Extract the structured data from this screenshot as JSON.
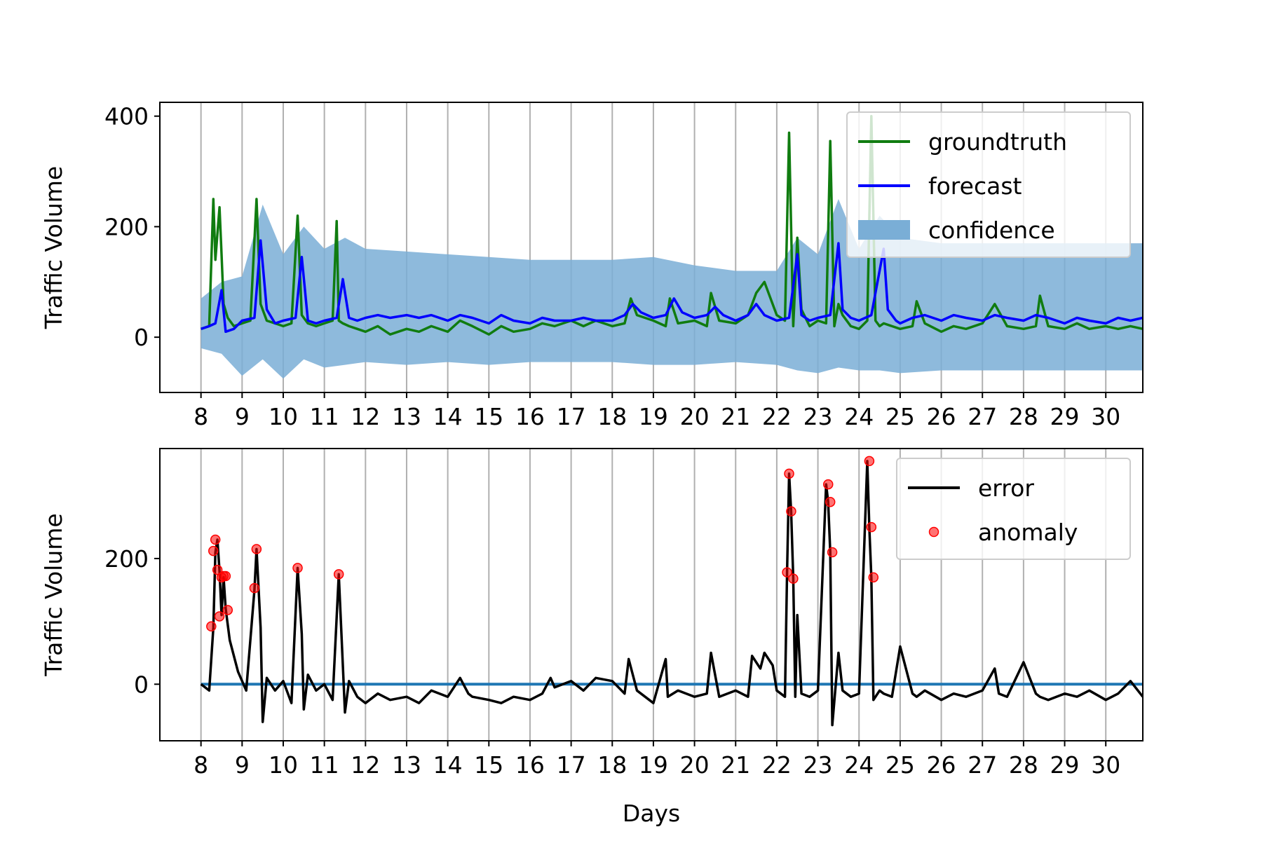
{
  "chart_data": [
    {
      "type": "line",
      "xlabel": "",
      "ylabel": "Traffic Volume",
      "xlim": [
        7,
        30.9
      ],
      "ylim": [
        -100,
        425
      ],
      "yticks": [
        0,
        200,
        400
      ],
      "xticks": [
        8,
        9,
        10,
        11,
        12,
        13,
        14,
        15,
        16,
        17,
        18,
        19,
        20,
        21,
        22,
        23,
        24,
        25,
        26,
        27,
        28,
        29,
        30
      ],
      "grid": "vertical",
      "legend_position": "top-right",
      "colors": {
        "groundtruth": "#107c10",
        "forecast": "#0000ff",
        "confidence": "#7aaed6"
      },
      "series": [
        {
          "name": "groundtruth",
          "kind": "line",
          "x": [
            8.0,
            8.2,
            8.3,
            8.35,
            8.45,
            8.5,
            8.55,
            8.65,
            8.8,
            9.0,
            9.2,
            9.35,
            9.45,
            9.6,
            9.8,
            10.0,
            10.2,
            10.35,
            10.45,
            10.6,
            10.8,
            11.0,
            11.2,
            11.3,
            11.35,
            11.45,
            11.6,
            11.8,
            12.0,
            12.3,
            12.6,
            13.0,
            13.3,
            13.6,
            14.0,
            14.3,
            14.6,
            15.0,
            15.3,
            15.6,
            16.0,
            16.3,
            16.6,
            17.0,
            17.3,
            17.6,
            18.0,
            18.3,
            18.45,
            18.6,
            19.0,
            19.3,
            19.4,
            19.6,
            20.0,
            20.3,
            20.4,
            20.6,
            21.0,
            21.3,
            21.5,
            21.7,
            22.0,
            22.2,
            22.3,
            22.4,
            22.5,
            22.6,
            22.8,
            23.0,
            23.2,
            23.3,
            23.4,
            23.5,
            23.6,
            23.8,
            24.0,
            24.2,
            24.3,
            24.4,
            24.5,
            24.6,
            24.8,
            25.0,
            25.3,
            25.4,
            25.6,
            26.0,
            26.3,
            26.6,
            27.0,
            27.3,
            27.6,
            28.0,
            28.3,
            28.4,
            28.6,
            29.0,
            29.3,
            29.6,
            30.0,
            30.3,
            30.6,
            30.9
          ],
          "values": [
            15,
            20,
            250,
            140,
            235,
            150,
            60,
            35,
            20,
            25,
            30,
            250,
            60,
            30,
            25,
            20,
            25,
            220,
            40,
            25,
            20,
            25,
            30,
            210,
            30,
            25,
            20,
            15,
            10,
            20,
            5,
            15,
            10,
            20,
            10,
            30,
            20,
            5,
            20,
            10,
            15,
            25,
            20,
            30,
            20,
            30,
            20,
            25,
            70,
            40,
            30,
            20,
            70,
            25,
            30,
            20,
            80,
            30,
            25,
            40,
            80,
            100,
            40,
            30,
            370,
            20,
            180,
            50,
            20,
            30,
            25,
            355,
            20,
            60,
            40,
            20,
            15,
            30,
            400,
            30,
            20,
            25,
            20,
            15,
            20,
            65,
            25,
            10,
            20,
            15,
            25,
            60,
            20,
            15,
            20,
            75,
            20,
            15,
            25,
            15,
            20,
            15,
            20,
            15
          ]
        },
        {
          "name": "forecast",
          "kind": "line",
          "x": [
            8.0,
            8.2,
            8.35,
            8.5,
            8.6,
            8.8,
            9.0,
            9.3,
            9.45,
            9.6,
            9.8,
            10.0,
            10.3,
            10.45,
            10.6,
            10.8,
            11.0,
            11.3,
            11.45,
            11.6,
            11.8,
            12.0,
            12.3,
            12.6,
            13.0,
            13.3,
            13.6,
            14.0,
            14.3,
            14.6,
            15.0,
            15.3,
            15.6,
            16.0,
            16.3,
            16.6,
            17.0,
            17.3,
            17.6,
            18.0,
            18.3,
            18.5,
            18.7,
            19.0,
            19.3,
            19.5,
            19.7,
            20.0,
            20.3,
            20.5,
            20.7,
            21.0,
            21.3,
            21.5,
            21.7,
            22.0,
            22.3,
            22.5,
            22.6,
            22.8,
            23.0,
            23.3,
            23.5,
            23.6,
            23.8,
            24.0,
            24.3,
            24.6,
            24.7,
            24.9,
            25.0,
            25.3,
            25.6,
            26.0,
            26.3,
            26.6,
            27.0,
            27.3,
            27.6,
            28.0,
            28.3,
            28.6,
            29.0,
            29.3,
            29.6,
            30.0,
            30.3,
            30.6,
            30.9
          ],
          "values": [
            15,
            20,
            25,
            85,
            10,
            15,
            30,
            35,
            175,
            50,
            25,
            30,
            35,
            145,
            30,
            25,
            30,
            35,
            105,
            35,
            30,
            35,
            40,
            35,
            40,
            35,
            40,
            30,
            40,
            35,
            25,
            40,
            30,
            25,
            35,
            30,
            30,
            35,
            30,
            30,
            40,
            60,
            45,
            35,
            40,
            70,
            45,
            35,
            40,
            55,
            40,
            30,
            40,
            60,
            40,
            30,
            35,
            150,
            40,
            30,
            35,
            40,
            170,
            50,
            35,
            30,
            40,
            160,
            50,
            30,
            25,
            35,
            40,
            30,
            40,
            35,
            30,
            40,
            35,
            30,
            40,
            35,
            25,
            35,
            30,
            25,
            35,
            30,
            35
          ]
        },
        {
          "name": "confidence",
          "kind": "band",
          "x": [
            8.0,
            8.5,
            9.0,
            9.5,
            10.0,
            10.5,
            11.0,
            11.5,
            12.0,
            13.0,
            14.0,
            15.0,
            16.0,
            17.0,
            18.0,
            19.0,
            20.0,
            21.0,
            22.0,
            22.5,
            23.0,
            23.5,
            24.0,
            24.5,
            25.0,
            26.0,
            27.0,
            28.0,
            29.0,
            30.0,
            30.9
          ],
          "upper": [
            70,
            100,
            110,
            240,
            150,
            200,
            160,
            180,
            160,
            155,
            150,
            145,
            140,
            140,
            140,
            145,
            130,
            120,
            120,
            180,
            150,
            250,
            160,
            220,
            180,
            170,
            170,
            170,
            170,
            170,
            170
          ],
          "lower": [
            -20,
            -30,
            -70,
            -40,
            -75,
            -40,
            -55,
            -50,
            -45,
            -50,
            -45,
            -50,
            -45,
            -45,
            -45,
            -50,
            -50,
            -45,
            -50,
            -60,
            -65,
            -55,
            -60,
            -60,
            -65,
            -60,
            -60,
            -60,
            -60,
            -60,
            -60
          ]
        }
      ]
    },
    {
      "type": "line",
      "xlabel": "Days",
      "ylabel": "Traffic Volume",
      "xlim": [
        7,
        30.9
      ],
      "ylim": [
        -90,
        375
      ],
      "yticks": [
        0,
        200
      ],
      "xticks": [
        8,
        9,
        10,
        11,
        12,
        13,
        14,
        15,
        16,
        17,
        18,
        19,
        20,
        21,
        22,
        23,
        24,
        25,
        26,
        27,
        28,
        29,
        30
      ],
      "grid": "vertical",
      "legend_position": "top-right",
      "colors": {
        "error": "#000000",
        "anomaly": "#ff0000",
        "zero": "#1f77b4"
      },
      "series": [
        {
          "name": "error",
          "kind": "line",
          "x": [
            8.0,
            8.2,
            8.3,
            8.35,
            8.4,
            8.45,
            8.5,
            8.55,
            8.6,
            8.7,
            8.9,
            9.1,
            9.3,
            9.35,
            9.45,
            9.5,
            9.6,
            9.8,
            10.0,
            10.2,
            10.35,
            10.45,
            10.5,
            10.6,
            10.8,
            11.0,
            11.2,
            11.35,
            11.45,
            11.5,
            11.6,
            11.8,
            12.0,
            12.3,
            12.6,
            13.0,
            13.3,
            13.6,
            14.0,
            14.3,
            14.5,
            14.6,
            15.0,
            15.3,
            15.6,
            16.0,
            16.3,
            16.5,
            16.6,
            17.0,
            17.3,
            17.6,
            18.0,
            18.3,
            18.4,
            18.6,
            19.0,
            19.3,
            19.35,
            19.6,
            20.0,
            20.3,
            20.4,
            20.6,
            21.0,
            21.3,
            21.4,
            21.6,
            21.7,
            21.9,
            22.0,
            22.2,
            22.25,
            22.3,
            22.35,
            22.4,
            22.45,
            22.5,
            22.6,
            22.8,
            23.0,
            23.2,
            23.25,
            23.3,
            23.35,
            23.5,
            23.6,
            23.8,
            24.0,
            24.2,
            24.25,
            24.3,
            24.35,
            24.5,
            24.6,
            24.8,
            25.0,
            25.3,
            25.4,
            25.6,
            26.0,
            26.3,
            26.6,
            27.0,
            27.3,
            27.4,
            27.6,
            28.0,
            28.3,
            28.4,
            28.6,
            29.0,
            29.3,
            29.6,
            30.0,
            30.3,
            30.6,
            30.9
          ],
          "values": [
            0,
            -10,
            90,
            210,
            230,
            180,
            110,
            170,
            120,
            70,
            20,
            -10,
            150,
            215,
            90,
            -60,
            10,
            -10,
            5,
            -30,
            185,
            80,
            -40,
            15,
            -10,
            0,
            -25,
            175,
            30,
            -45,
            5,
            -20,
            -30,
            -15,
            -25,
            -20,
            -30,
            -10,
            -20,
            10,
            -15,
            -20,
            -25,
            -30,
            -20,
            -25,
            -15,
            10,
            -5,
            5,
            -10,
            10,
            5,
            -15,
            40,
            -10,
            -30,
            40,
            -20,
            -10,
            -20,
            -15,
            50,
            -20,
            -10,
            -20,
            45,
            25,
            50,
            30,
            -10,
            -20,
            178,
            335,
            275,
            170,
            -20,
            110,
            -15,
            -20,
            -10,
            318,
            290,
            210,
            -65,
            50,
            -10,
            -20,
            -15,
            355,
            250,
            170,
            -25,
            -10,
            -15,
            -20,
            60,
            -15,
            -20,
            -10,
            -25,
            -15,
            -20,
            -10,
            25,
            -15,
            -20,
            35,
            -15,
            -20,
            -25,
            -15,
            -20,
            -10,
            -25,
            -15,
            5,
            -20
          ]
        },
        {
          "name": "anomaly",
          "kind": "scatter",
          "x": [
            8.25,
            8.3,
            8.35,
            8.4,
            8.45,
            8.5,
            8.55,
            8.6,
            8.65,
            9.3,
            9.35,
            10.35,
            11.35,
            22.25,
            22.3,
            22.35,
            22.4,
            23.25,
            23.3,
            23.35,
            24.25,
            24.3,
            24.35
          ],
          "values": [
            92,
            212,
            230,
            182,
            108,
            170,
            172,
            172,
            118,
            153,
            215,
            185,
            175,
            178,
            335,
            275,
            168,
            318,
            290,
            210,
            355,
            250,
            170
          ]
        }
      ]
    }
  ]
}
